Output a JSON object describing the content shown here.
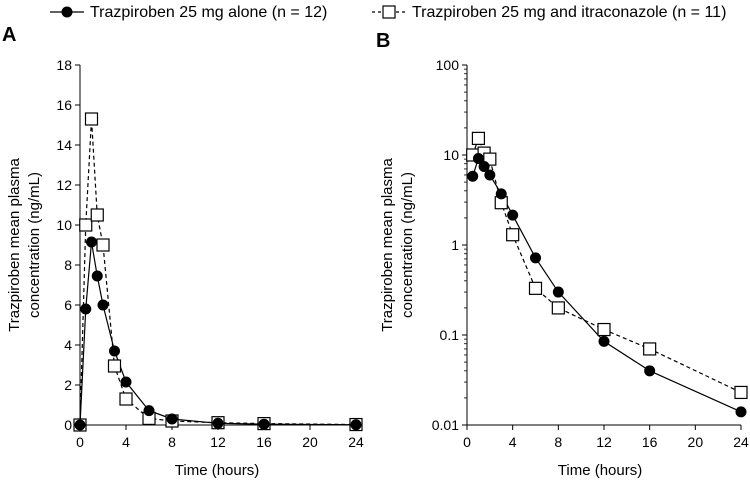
{
  "legend": {
    "items": [
      {
        "label": "Trazpiroben 25 mg alone (n = 12)",
        "marker": "filled-circle",
        "line": "solid"
      },
      {
        "label": "Trazpiroben 25 mg and itraconazole (n = 11)",
        "marker": "open-square",
        "line": "dashed"
      }
    ]
  },
  "chart_data": [
    {
      "panel": "A",
      "type": "line",
      "xlabel": "Time (hours)",
      "ylabel_line1": "Trazpiroben mean plasma",
      "ylabel_line2": "concentration (ng/mL)",
      "xlim": [
        0,
        24
      ],
      "ylim": [
        0,
        18
      ],
      "xticks": [
        0,
        4,
        8,
        12,
        16,
        20,
        24
      ],
      "yticks": [
        0,
        2,
        4,
        6,
        8,
        10,
        12,
        14,
        16,
        18
      ],
      "yscale": "linear",
      "grid": false,
      "series": [
        {
          "name": "Trazpiroben 25 mg alone (n = 12)",
          "style": "solid-filled-circle",
          "x": [
            0,
            0.5,
            1,
            1.5,
            2,
            3,
            4,
            6,
            8,
            12,
            16,
            24
          ],
          "y": [
            0,
            5.8,
            9.15,
            7.45,
            6.0,
            3.7,
            2.15,
            0.72,
            0.3,
            0.085,
            0.04,
            0.014
          ]
        },
        {
          "name": "Trazpiroben 25 mg and itraconazole (n = 11)",
          "style": "dashed-open-square",
          "x": [
            0,
            0.5,
            1,
            1.5,
            2,
            3,
            4,
            6,
            8,
            12,
            16,
            24
          ],
          "y": [
            0,
            10.0,
            15.3,
            10.5,
            9.0,
            2.95,
            1.3,
            0.33,
            0.2,
            0.115,
            0.07,
            0.023
          ]
        }
      ]
    },
    {
      "panel": "B",
      "type": "line",
      "xlabel": "Time (hours)",
      "ylabel_line1": "Trazpiroben mean plasma",
      "ylabel_line2": "concentration (ng/mL)",
      "xlim": [
        0,
        24
      ],
      "ylim": [
        0.01,
        100
      ],
      "xticks": [
        0,
        4,
        8,
        12,
        16,
        20,
        24
      ],
      "yticks": [
        0.01,
        0.1,
        1,
        10,
        100
      ],
      "ytick_labels": [
        "0.01",
        "0.1",
        "1",
        "10",
        "100"
      ],
      "yscale": "log",
      "grid": false,
      "series": [
        {
          "name": "Trazpiroben 25 mg alone (n = 12)",
          "style": "solid-filled-circle",
          "x": [
            0.5,
            1,
            1.5,
            2,
            3,
            4,
            6,
            8,
            12,
            16,
            24
          ],
          "y": [
            5.8,
            9.15,
            7.45,
            6.0,
            3.7,
            2.15,
            0.72,
            0.3,
            0.085,
            0.04,
            0.014
          ]
        },
        {
          "name": "Trazpiroben 25 mg and itraconazole (n = 11)",
          "style": "dashed-open-square",
          "x": [
            0.5,
            1,
            1.5,
            2,
            3,
            4,
            6,
            8,
            12,
            16,
            24
          ],
          "y": [
            10.0,
            15.3,
            10.5,
            9.0,
            2.95,
            1.3,
            0.33,
            0.2,
            0.115,
            0.07,
            0.023
          ]
        }
      ]
    }
  ]
}
